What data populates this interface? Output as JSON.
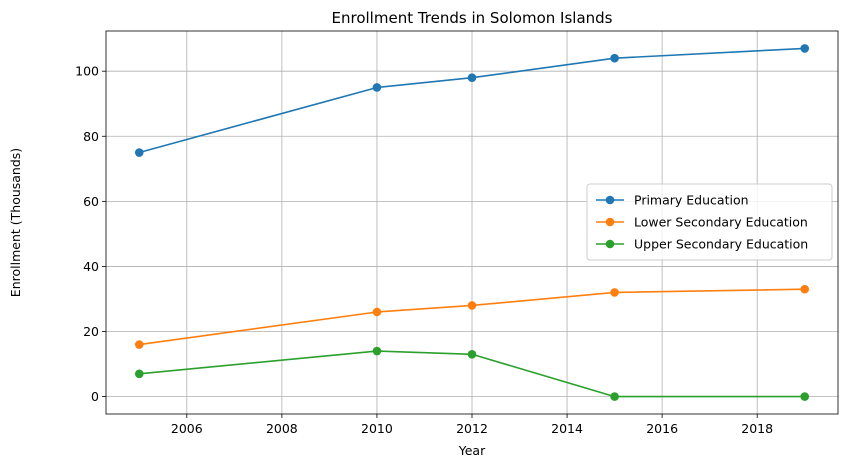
{
  "chart_data": {
    "type": "line",
    "title": "Enrollment Trends in Solomon Islands",
    "xlabel": "Year",
    "ylabel": "Enrollment (Thousands)",
    "x": [
      2005,
      2010,
      2012,
      2015,
      2019
    ],
    "xlim": [
      2004.3,
      2019.7
    ],
    "ylim": [
      -5.35,
      112.35
    ],
    "xticks": [
      2006,
      2008,
      2010,
      2012,
      2014,
      2016,
      2018
    ],
    "yticks": [
      0,
      20,
      40,
      60,
      80,
      100
    ],
    "grid": true,
    "legend_position": "center-right",
    "series": [
      {
        "name": "Primary Education",
        "color": "#1f77b4",
        "values": [
          75,
          95,
          98,
          104,
          107
        ]
      },
      {
        "name": "Lower Secondary Education",
        "color": "#ff7f0e",
        "values": [
          16,
          26,
          28,
          32,
          33
        ]
      },
      {
        "name": "Upper Secondary Education",
        "color": "#2ca02c",
        "values": [
          7,
          14,
          13,
          0,
          0
        ]
      }
    ]
  }
}
